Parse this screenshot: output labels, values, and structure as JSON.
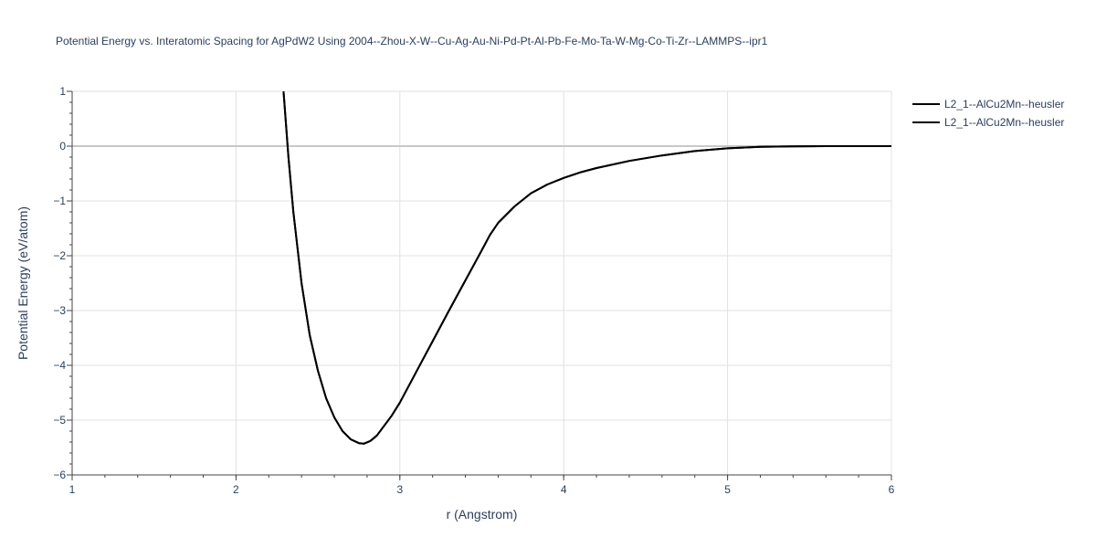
{
  "chart_data": {
    "type": "line",
    "title": "Potential Energy vs. Interatomic Spacing for AgPdW2 Using 2004--Zhou-X-W--Cu-Ag-Au-Ni-Pd-Pt-Al-Pb-Fe-Mo-Ta-W-Mg-Co-Ti-Zr--LAMMPS--ipr1",
    "xlabel": "r (Angstrom)",
    "ylabel": "Potential Energy (eV/atom)",
    "xlim": [
      1,
      6
    ],
    "ylim": [
      -6,
      1
    ],
    "x_ticks": [
      "1",
      "2",
      "3",
      "4",
      "5",
      "6"
    ],
    "y_ticks": [
      "1",
      "0",
      "−1",
      "−2",
      "−3",
      "−4",
      "−5",
      "−6"
    ],
    "grid": true,
    "legend_position": "top-right",
    "series": [
      {
        "name": "L2_1--AlCu2Mn--heusler",
        "color": "#000000",
        "x": [
          2.29,
          2.32,
          2.35,
          2.4,
          2.45,
          2.5,
          2.55,
          2.6,
          2.65,
          2.7,
          2.75,
          2.78,
          2.82,
          2.86,
          2.9,
          2.95,
          3.0,
          3.1,
          3.2,
          3.3,
          3.4,
          3.5,
          3.55,
          3.6,
          3.7,
          3.8,
          3.9,
          4.0,
          4.1,
          4.2,
          4.4,
          4.6,
          4.8,
          5.0,
          5.2,
          5.4,
          5.6,
          5.8,
          6.0
        ],
        "y": [
          1.0,
          -0.2,
          -1.2,
          -2.5,
          -3.45,
          -4.1,
          -4.6,
          -4.95,
          -5.2,
          -5.35,
          -5.42,
          -5.43,
          -5.38,
          -5.28,
          -5.12,
          -4.92,
          -4.68,
          -4.12,
          -3.56,
          -3.0,
          -2.45,
          -1.9,
          -1.62,
          -1.4,
          -1.1,
          -0.86,
          -0.7,
          -0.58,
          -0.48,
          -0.4,
          -0.27,
          -0.17,
          -0.09,
          -0.04,
          -0.012,
          -0.004,
          -0.001,
          0.0,
          0.0
        ]
      },
      {
        "name": "L2_1--AlCu2Mn--heusler",
        "color": "#000000",
        "x": [
          2.29,
          2.32,
          2.35,
          2.4,
          2.45,
          2.5,
          2.55,
          2.6,
          2.65,
          2.7,
          2.75,
          2.78,
          2.82,
          2.86,
          2.9,
          2.95,
          3.0,
          3.1,
          3.2,
          3.3,
          3.4,
          3.5,
          3.55,
          3.6,
          3.7,
          3.8,
          3.9,
          4.0,
          4.1,
          4.2,
          4.4,
          4.6,
          4.8,
          5.0,
          5.2,
          5.4,
          5.6,
          5.8,
          6.0
        ],
        "y": [
          1.0,
          -0.2,
          -1.2,
          -2.5,
          -3.45,
          -4.1,
          -4.6,
          -4.95,
          -5.2,
          -5.35,
          -5.42,
          -5.43,
          -5.38,
          -5.28,
          -5.12,
          -4.92,
          -4.68,
          -4.12,
          -3.56,
          -3.0,
          -2.45,
          -1.9,
          -1.62,
          -1.4,
          -1.1,
          -0.86,
          -0.7,
          -0.58,
          -0.48,
          -0.4,
          -0.27,
          -0.17,
          -0.09,
          -0.04,
          -0.012,
          -0.004,
          -0.001,
          0.0,
          0.0
        ]
      }
    ]
  }
}
